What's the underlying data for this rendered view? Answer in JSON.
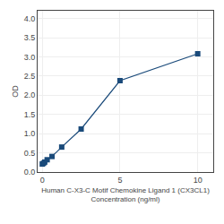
{
  "chart_data": {
    "type": "line",
    "x": [
      0.0,
      0.078,
      0.156,
      0.313,
      0.625,
      1.25,
      2.5,
      5.0,
      10.0
    ],
    "values": [
      0.208,
      0.228,
      0.259,
      0.32,
      0.405,
      0.65,
      1.12,
      2.38,
      3.08
    ],
    "xlabel": "Human C-X3-C Motif Chemokine Ligand 1 (CX3CL1)\nConcentration (ng/ml)",
    "ylabel": "OD",
    "xlim": [
      -0.3,
      11
    ],
    "xticks": [
      0,
      5,
      10
    ],
    "ylim": [
      0.0,
      4.2
    ],
    "yticks": [
      {
        "value": 0.0,
        "label": "0.0"
      },
      0.5,
      {
        "value": 1.0,
        "label": "1.0"
      },
      1.5,
      {
        "value": 2.0,
        "label": "2.0"
      },
      2.5,
      {
        "value": 3.0,
        "label": "3.0"
      },
      3.5,
      {
        "value": 4.0,
        "label": "4.0"
      }
    ],
    "color": "#1a4a7a",
    "marker": "square",
    "grid": true
  }
}
